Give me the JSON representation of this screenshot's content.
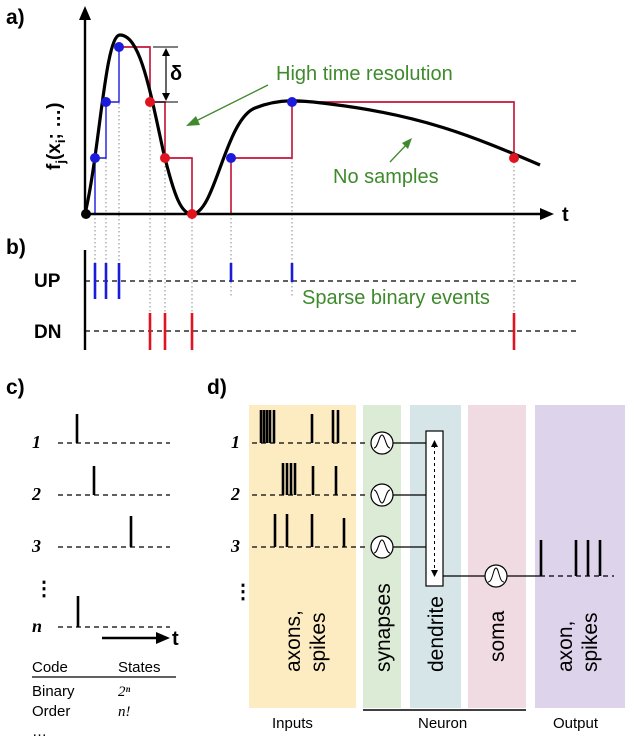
{
  "panels": {
    "a": "a)",
    "b": "b)",
    "c": "c)",
    "d": "d)"
  },
  "panel_a": {
    "ylabel": "f",
    "ylabel_sub": "j",
    "ylabel_rest": "(x",
    "ylabel_sub2": "i",
    "ylabel_tail": "; …)",
    "xlabel": "t",
    "delta": "δ",
    "annot_high": "High time resolution",
    "annot_nosamples": "No samples",
    "colors": {
      "up": "#1b1bdc",
      "down": "#e0141e",
      "annot": "#3f8a2c",
      "curve": "#000000"
    }
  },
  "panel_b": {
    "up_label": "UP",
    "dn_label": "DN",
    "annot": "Sparse binary events"
  },
  "panel_c": {
    "rows": [
      "1",
      "2",
      "3",
      "⋮",
      "n"
    ],
    "axis_label": "t",
    "table": {
      "header_code": "Code",
      "header_states": "States",
      "rows": [
        {
          "code": "Binary",
          "states": "2ⁿ"
        },
        {
          "code": "Order",
          "states": "n!"
        },
        {
          "code": "…",
          "states": ""
        }
      ]
    }
  },
  "panel_d": {
    "rows": [
      "1",
      "2",
      "3",
      "⋮"
    ],
    "blocks": [
      {
        "label": "axons,\nspikes",
        "color": "#fdebc2"
      },
      {
        "label": "synapses",
        "color": "#dcebd5"
      },
      {
        "label": "dendrite",
        "color": "#d6e6e8"
      },
      {
        "label": "soma",
        "color": "#f0dbe3"
      },
      {
        "label": "axon,\nspikes",
        "color": "#ddd3ea"
      }
    ],
    "bottom_labels": {
      "inputs": "Inputs",
      "neuron": "Neuron",
      "output": "Output"
    }
  }
}
